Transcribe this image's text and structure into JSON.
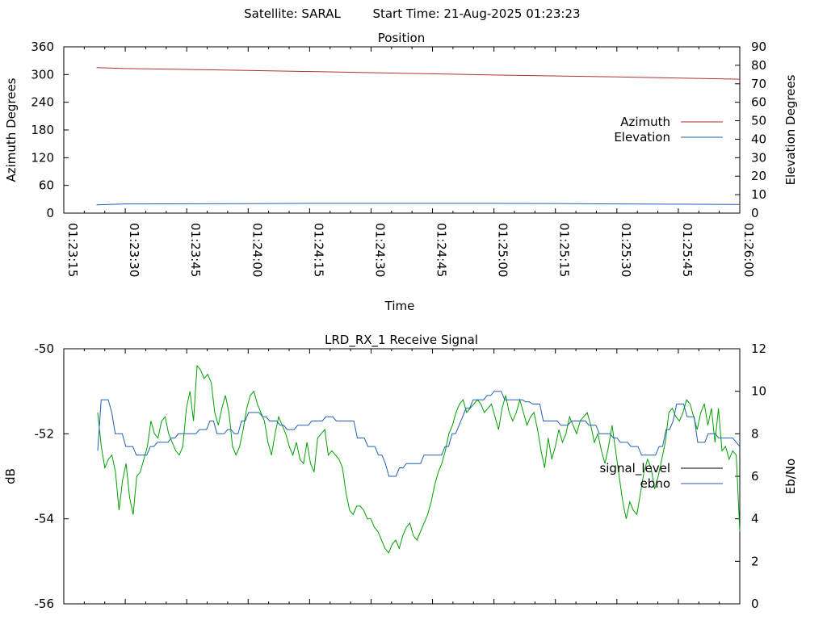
{
  "header": {
    "satellite": "Satellite: SARAL",
    "start_time": "Start Time: 21-Aug-2025 01:23:23"
  },
  "chart_data": [
    {
      "type": "line",
      "title": "Position",
      "xlabel": "Time",
      "ylabel": "Azimuth Degrees",
      "y2label": "Elevation Degrees",
      "x_ticks": [
        "01:23:15",
        "01:23:30",
        "01:23:45",
        "01:24:00",
        "01:24:15",
        "01:24:30",
        "01:24:45",
        "01:25:00",
        "01:25:15",
        "01:25:30",
        "01:25:45",
        "01:26:00"
      ],
      "xlim": [
        "01:23:15",
        "01:26:00"
      ],
      "ylim": [
        0,
        360
      ],
      "y_ticks": [
        "0",
        "60",
        "120",
        "180",
        "240",
        "300",
        "360"
      ],
      "y2lim": [
        0,
        90
      ],
      "y2_ticks": [
        "0",
        "10",
        "20",
        "30",
        "40",
        "50",
        "60",
        "70",
        "80",
        "90"
      ],
      "legend_position": "right",
      "series": [
        {
          "name": "Azimuth",
          "axis": "y",
          "color": "#b03030",
          "x": [
            "01:23:23",
            "01:23:30",
            "01:24:00",
            "01:24:30",
            "01:25:00",
            "01:25:30",
            "01:26:00"
          ],
          "values": [
            315,
            313,
            309,
            304,
            299,
            295,
            290
          ]
        },
        {
          "name": "Elevation",
          "axis": "y2",
          "color": "#2060b0",
          "x": [
            "01:23:23",
            "01:23:30",
            "01:24:00",
            "01:24:15",
            "01:24:30",
            "01:25:00",
            "01:25:15",
            "01:25:30",
            "01:26:00"
          ],
          "values": [
            4.5,
            5.0,
            5.1,
            5.3,
            5.3,
            5.3,
            5.2,
            5.0,
            4.7
          ]
        }
      ]
    },
    {
      "type": "line",
      "title": "LRD_RX_1 Receive Signal",
      "xlabel": "",
      "ylabel": "dB",
      "y2label": "Eb/No",
      "xlim": [
        "01:23:15",
        "01:26:00"
      ],
      "ylim": [
        -56,
        -50
      ],
      "y_ticks": [
        "-56",
        "-54",
        "-52",
        "-50"
      ],
      "y2lim": [
        0,
        12
      ],
      "y2_ticks": [
        "0",
        "2",
        "4",
        "6",
        "8",
        "10",
        "12"
      ],
      "legend_position": "right",
      "series": [
        {
          "name": "signal_level",
          "axis": "y",
          "color": "#00a000",
          "legend_color": "#000000",
          "values": [
            -51.5,
            -52.3,
            -52.8,
            -52.6,
            -52.5,
            -52.9,
            -53.8,
            -53.1,
            -52.7,
            -53.5,
            -53.9,
            -53.0,
            -52.9,
            -52.6,
            -52.3,
            -51.7,
            -52.0,
            -52.1,
            -51.7,
            -51.6,
            -52.0,
            -52.2,
            -52.4,
            -52.5,
            -52.3,
            -51.4,
            -51.0,
            -51.7,
            -50.4,
            -50.5,
            -50.7,
            -50.6,
            -50.8,
            -51.5,
            -51.8,
            -51.4,
            -51.1,
            -51.5,
            -52.3,
            -52.5,
            -52.3,
            -51.9,
            -51.4,
            -51.1,
            -51.0,
            -51.3,
            -51.5,
            -51.7,
            -52.2,
            -52.5,
            -52.0,
            -51.6,
            -51.8,
            -52.0,
            -52.3,
            -52.5,
            -52.2,
            -52.6,
            -52.7,
            -52.2,
            -52.7,
            -52.9,
            -52.1,
            -52.0,
            -51.9,
            -52.5,
            -52.4,
            -52.5,
            -52.6,
            -52.8,
            -53.4,
            -53.8,
            -53.9,
            -53.7,
            -53.7,
            -53.8,
            -54.0,
            -54.0,
            -54.2,
            -54.3,
            -54.5,
            -54.7,
            -54.8,
            -54.6,
            -54.5,
            -54.7,
            -54.4,
            -54.2,
            -54.1,
            -54.4,
            -54.5,
            -54.3,
            -54.1,
            -53.9,
            -53.6,
            -53.2,
            -52.9,
            -52.7,
            -52.4,
            -52.0,
            -51.8,
            -51.5,
            -51.3,
            -51.2,
            -51.5,
            -51.4,
            -51.3,
            -51.2,
            -51.3,
            -51.5,
            -51.4,
            -51.3,
            -51.6,
            -51.9,
            -51.4,
            -51.1,
            -51.5,
            -51.7,
            -51.5,
            -51.2,
            -51.5,
            -51.8,
            -51.6,
            -51.5,
            -51.9,
            -52.4,
            -52.8,
            -52.1,
            -52.6,
            -52.3,
            -51.9,
            -52.2,
            -52.0,
            -51.6,
            -51.8,
            -52.0,
            -51.7,
            -51.6,
            -51.5,
            -51.8,
            -52.2,
            -52.0,
            -52.4,
            -52.7,
            -52.3,
            -51.8,
            -52.4,
            -53.0,
            -53.6,
            -54.0,
            -53.6,
            -53.8,
            -53.9,
            -53.4,
            -52.9,
            -52.6,
            -52.8,
            -53.3,
            -53.0,
            -52.6,
            -52.2,
            -51.5,
            -51.4,
            -51.6,
            -51.7,
            -51.5,
            -51.2,
            -51.3,
            -51.6,
            -51.9,
            -51.5,
            -51.3,
            -51.8,
            -51.4,
            -52.2,
            -51.4,
            -52.4,
            -52.3,
            -52.6,
            -52.4,
            -52.5,
            -54.3
          ]
        },
        {
          "name": "ebno",
          "axis": "y2",
          "color": "#2060b0",
          "values": [
            7.2,
            9.6,
            9.6,
            9.6,
            9.0,
            8.0,
            8.0,
            8.0,
            7.4,
            7.4,
            7.4,
            7.0,
            7.0,
            7.0,
            7.0,
            7.4,
            7.4,
            7.6,
            7.6,
            7.6,
            7.6,
            7.8,
            7.8,
            8.0,
            8.0,
            8.0,
            8.0,
            8.0,
            8.0,
            8.2,
            8.2,
            8.2,
            8.6,
            8.6,
            8.0,
            8.0,
            8.0,
            8.2,
            8.2,
            8.0,
            8.0,
            8.6,
            8.6,
            9.0,
            9.0,
            9.0,
            9.0,
            8.8,
            8.8,
            8.6,
            8.6,
            8.6,
            8.4,
            8.4,
            8.2,
            8.2,
            8.2,
            8.4,
            8.4,
            8.4,
            8.4,
            8.6,
            8.6,
            8.6,
            8.6,
            8.8,
            8.8,
            8.8,
            8.6,
            8.6,
            8.6,
            8.6,
            8.6,
            8.6,
            7.8,
            7.8,
            7.8,
            7.4,
            7.4,
            7.4,
            7.0,
            7.0,
            6.6,
            6.0,
            6.0,
            6.0,
            6.4,
            6.4,
            6.6,
            6.6,
            6.6,
            6.6,
            6.6,
            7.0,
            7.0,
            7.0,
            7.0,
            7.0,
            7.0,
            7.4,
            7.4,
            8.0,
            8.0,
            8.4,
            8.8,
            9.2,
            9.2,
            9.6,
            9.6,
            9.6,
            9.6,
            9.8,
            9.8,
            10.0,
            10.0,
            10.0,
            9.6,
            9.6,
            9.6,
            9.6,
            9.6,
            9.6,
            9.5,
            9.5,
            9.4,
            9.4,
            9.4,
            8.6,
            8.6,
            8.6,
            8.6,
            8.6,
            8.4,
            8.4,
            8.4,
            8.6,
            8.6,
            8.6,
            8.6,
            8.6,
            8.4,
            8.4,
            8.4,
            8.0,
            8.0,
            8.0,
            8.0,
            7.8,
            7.8,
            7.6,
            7.6,
            7.6,
            7.4,
            7.4,
            7.4,
            7.0,
            7.0,
            7.0,
            7.0,
            7.0,
            7.4,
            7.4,
            8.2,
            8.2,
            8.6,
            9.4,
            9.4,
            9.4,
            8.8,
            8.8,
            8.8,
            7.6,
            7.6,
            7.6,
            8.0,
            8.0,
            8.0,
            7.8,
            7.8,
            7.8,
            7.8,
            7.8,
            7.6,
            7.4
          ]
        }
      ]
    }
  ]
}
